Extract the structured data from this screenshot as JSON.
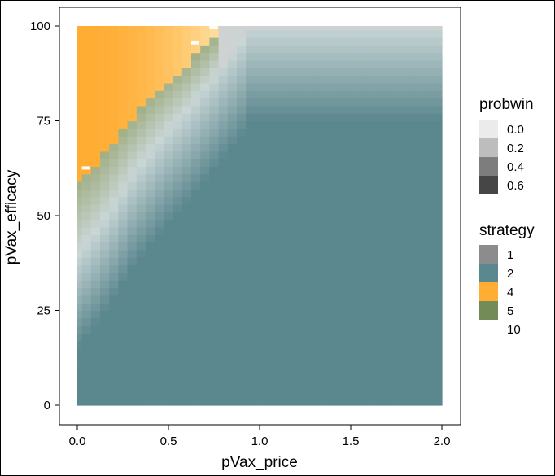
{
  "chart_data": {
    "type": "heatmap",
    "title": "",
    "xlabel": "pVax_price",
    "ylabel": "pVax_efficacy",
    "xlim": [
      0,
      2
    ],
    "ylim": [
      0,
      100
    ],
    "x_ticks": [
      {
        "value": 0,
        "label": "0.0"
      },
      {
        "value": 0.5,
        "label": "0.5"
      },
      {
        "value": 1.0,
        "label": "1.0"
      },
      {
        "value": 1.5,
        "label": "1.5"
      },
      {
        "value": 2.0,
        "label": "2.0"
      }
    ],
    "y_ticks": [
      {
        "value": 0,
        "label": "0"
      },
      {
        "value": 25,
        "label": "25"
      },
      {
        "value": 50,
        "label": "50"
      },
      {
        "value": 75,
        "label": "75"
      },
      {
        "value": 100,
        "label": "100"
      }
    ],
    "grid": false,
    "legend_position": "right",
    "legends": {
      "probwin": {
        "title": "probwin",
        "entries": [
          {
            "label": "0.0",
            "color": "#ebebeb"
          },
          {
            "label": "0.2",
            "color": "#bdbdbd"
          },
          {
            "label": "0.4",
            "color": "#7d7d7d"
          },
          {
            "label": "0.6",
            "color": "#464646"
          }
        ]
      },
      "strategy": {
        "title": "strategy",
        "entries": [
          {
            "label": "1",
            "color": "#8c8c8c"
          },
          {
            "label": "2",
            "color": "#5b878e"
          },
          {
            "label": "4",
            "color": "#ffad33"
          },
          {
            "label": "5",
            "color": "#738c57"
          },
          {
            "label": "10",
            "color": "#ffffff"
          }
        ]
      }
    },
    "regions": {
      "strategy4_boundary_efficacy_at_price": [
        [
          0.0,
          60
        ],
        [
          0.1,
          64
        ],
        [
          0.2,
          70
        ],
        [
          0.3,
          76
        ],
        [
          0.4,
          82
        ],
        [
          0.5,
          86
        ],
        [
          0.6,
          90
        ],
        [
          0.7,
          95
        ],
        [
          0.8,
          100
        ]
      ],
      "strategy2_boundary_efficacy_at_price": [
        [
          0.0,
          40
        ],
        [
          0.1,
          46
        ],
        [
          0.2,
          53
        ],
        [
          0.3,
          61
        ],
        [
          0.4,
          67
        ],
        [
          0.5,
          73
        ],
        [
          0.6,
          78
        ],
        [
          0.7,
          84
        ],
        [
          0.8,
          90
        ],
        [
          0.9,
          96
        ],
        [
          0.95,
          100
        ]
      ]
    }
  }
}
